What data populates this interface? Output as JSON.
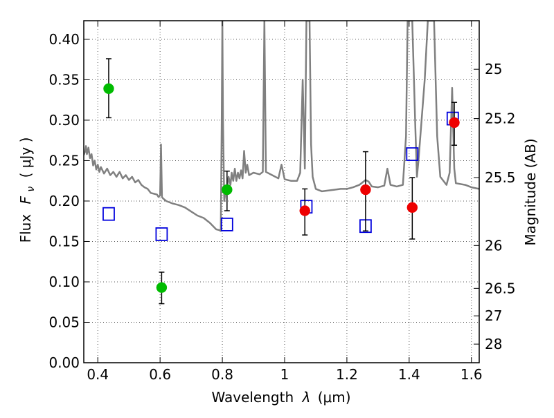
{
  "chart_data": {
    "type": "scatter",
    "title": "",
    "xlabel": "Wavelength",
    "xlabel_symbol": "λ",
    "xlabel_unit": "(μm)",
    "ylabel": "Flux",
    "ylabel_symbol": "F",
    "ylabel_subscript": "ν",
    "ylabel_unit": "( μJy )",
    "y2label": "Magnitude (AB)",
    "xlim": [
      0.355,
      1.625
    ],
    "ylim": [
      0.0,
      0.423
    ],
    "grid": true,
    "xticks": [
      0.4,
      0.6,
      0.8,
      1.0,
      1.2,
      1.4,
      1.6
    ],
    "xtick_labels": [
      "0.4",
      "0.6",
      "0.8",
      "1",
      "1.2",
      "1.4",
      "1.6"
    ],
    "yticks": [
      0.0,
      0.05,
      0.1,
      0.15,
      0.2,
      0.25,
      0.3,
      0.35,
      0.4
    ],
    "ytick_labels": [
      "0.00",
      "0.05",
      "0.10",
      "0.15",
      "0.20",
      "0.25",
      "0.30",
      "0.35",
      "0.40"
    ],
    "y2ticks": [
      {
        "label": "25",
        "flux": 0.363
      },
      {
        "label": "25.2",
        "flux": 0.302
      },
      {
        "label": "25.5",
        "flux": 0.229
      },
      {
        "label": "26",
        "flux": 0.145
      },
      {
        "label": "26.5",
        "flux": 0.092
      },
      {
        "label": "27",
        "flux": 0.058
      },
      {
        "label": "28",
        "flux": 0.023
      }
    ],
    "colors": {
      "spectrum": "#808080",
      "green": "#00bb00",
      "red": "#ee0000",
      "model": "#0000dd",
      "errorbar": "#000000",
      "grid": "#555555"
    },
    "series": [
      {
        "name": "model SED spectrum",
        "type": "line",
        "points": [
          [
            0.355,
            0.257
          ],
          [
            0.36,
            0.262
          ],
          [
            0.362,
            0.268
          ],
          [
            0.365,
            0.258
          ],
          [
            0.37,
            0.266
          ],
          [
            0.375,
            0.253
          ],
          [
            0.38,
            0.258
          ],
          [
            0.385,
            0.244
          ],
          [
            0.39,
            0.25
          ],
          [
            0.395,
            0.239
          ],
          [
            0.4,
            0.245
          ],
          [
            0.405,
            0.236
          ],
          [
            0.41,
            0.242
          ],
          [
            0.42,
            0.234
          ],
          [
            0.43,
            0.24
          ],
          [
            0.44,
            0.232
          ],
          [
            0.45,
            0.236
          ],
          [
            0.46,
            0.23
          ],
          [
            0.47,
            0.236
          ],
          [
            0.48,
            0.228
          ],
          [
            0.49,
            0.232
          ],
          [
            0.5,
            0.226
          ],
          [
            0.51,
            0.23
          ],
          [
            0.52,
            0.223
          ],
          [
            0.53,
            0.226
          ],
          [
            0.54,
            0.22
          ],
          [
            0.55,
            0.217
          ],
          [
            0.56,
            0.215
          ],
          [
            0.57,
            0.21
          ],
          [
            0.58,
            0.209
          ],
          [
            0.59,
            0.208
          ],
          [
            0.595,
            0.205
          ],
          [
            0.6,
            0.207
          ],
          [
            0.603,
            0.27
          ],
          [
            0.606,
            0.205
          ],
          [
            0.61,
            0.203
          ],
          [
            0.62,
            0.2
          ],
          [
            0.64,
            0.197
          ],
          [
            0.66,
            0.195
          ],
          [
            0.68,
            0.192
          ],
          [
            0.7,
            0.187
          ],
          [
            0.72,
            0.182
          ],
          [
            0.74,
            0.179
          ],
          [
            0.76,
            0.173
          ],
          [
            0.78,
            0.165
          ],
          [
            0.79,
            0.164
          ],
          [
            0.795,
            0.163
          ],
          [
            0.798,
            0.3
          ],
          [
            0.8,
            0.423
          ],
          [
            0.802,
            0.3
          ],
          [
            0.806,
            0.2
          ],
          [
            0.81,
            0.21
          ],
          [
            0.815,
            0.214
          ],
          [
            0.82,
            0.23
          ],
          [
            0.826,
            0.22
          ],
          [
            0.83,
            0.235
          ],
          [
            0.835,
            0.225
          ],
          [
            0.84,
            0.24
          ],
          [
            0.845,
            0.225
          ],
          [
            0.85,
            0.235
          ],
          [
            0.855,
            0.228
          ],
          [
            0.86,
            0.238
          ],
          [
            0.865,
            0.228
          ],
          [
            0.87,
            0.262
          ],
          [
            0.875,
            0.235
          ],
          [
            0.88,
            0.245
          ],
          [
            0.886,
            0.232
          ],
          [
            0.9,
            0.235
          ],
          [
            0.92,
            0.233
          ],
          [
            0.93,
            0.236
          ],
          [
            0.935,
            0.423
          ],
          [
            0.94,
            0.236
          ],
          [
            0.96,
            0.232
          ],
          [
            0.98,
            0.228
          ],
          [
            0.99,
            0.245
          ],
          [
            1.0,
            0.227
          ],
          [
            1.02,
            0.225
          ],
          [
            1.04,
            0.225
          ],
          [
            1.05,
            0.235
          ],
          [
            1.058,
            0.35
          ],
          [
            1.065,
            0.24
          ],
          [
            1.07,
            0.423
          ],
          [
            1.08,
            0.423
          ],
          [
            1.085,
            0.27
          ],
          [
            1.09,
            0.23
          ],
          [
            1.1,
            0.215
          ],
          [
            1.12,
            0.212
          ],
          [
            1.14,
            0.213
          ],
          [
            1.16,
            0.214
          ],
          [
            1.18,
            0.215
          ],
          [
            1.2,
            0.215
          ],
          [
            1.22,
            0.217
          ],
          [
            1.24,
            0.22
          ],
          [
            1.26,
            0.226
          ],
          [
            1.27,
            0.224
          ],
          [
            1.28,
            0.218
          ],
          [
            1.3,
            0.217
          ],
          [
            1.32,
            0.219
          ],
          [
            1.33,
            0.24
          ],
          [
            1.34,
            0.22
          ],
          [
            1.36,
            0.218
          ],
          [
            1.38,
            0.22
          ],
          [
            1.39,
            0.28
          ],
          [
            1.395,
            0.423
          ],
          [
            1.41,
            0.423
          ],
          [
            1.42,
            0.29
          ],
          [
            1.425,
            0.23
          ],
          [
            1.43,
            0.25
          ],
          [
            1.44,
            0.3
          ],
          [
            1.45,
            0.35
          ],
          [
            1.46,
            0.423
          ],
          [
            1.48,
            0.423
          ],
          [
            1.49,
            0.28
          ],
          [
            1.5,
            0.23
          ],
          [
            1.52,
            0.22
          ],
          [
            1.53,
            0.235
          ],
          [
            1.538,
            0.34
          ],
          [
            1.545,
            0.24
          ],
          [
            1.55,
            0.222
          ],
          [
            1.58,
            0.22
          ],
          [
            1.6,
            0.217
          ],
          [
            1.625,
            0.215
          ]
        ]
      },
      {
        "name": "green detections",
        "type": "scatter",
        "points": [
          {
            "x": 0.435,
            "y": 0.339,
            "lo": 0.303,
            "hi": 0.376
          },
          {
            "x": 0.605,
            "y": 0.093,
            "lo": 0.073,
            "hi": 0.112
          },
          {
            "x": 0.815,
            "y": 0.214,
            "lo": 0.188,
            "hi": 0.237
          }
        ]
      },
      {
        "name": "red detections",
        "type": "scatter",
        "points": [
          {
            "x": 1.065,
            "y": 0.188,
            "lo": 0.158,
            "hi": 0.215
          },
          {
            "x": 1.26,
            "y": 0.214,
            "lo": 0.163,
            "hi": 0.261
          },
          {
            "x": 1.41,
            "y": 0.192,
            "lo": 0.153,
            "hi": 0.229
          },
          {
            "x": 1.545,
            "y": 0.297,
            "lo": 0.269,
            "hi": 0.322
          }
        ]
      },
      {
        "name": "model photometry",
        "type": "scatter",
        "points": [
          {
            "x": 0.435,
            "y": 0.184
          },
          {
            "x": 0.605,
            "y": 0.159
          },
          {
            "x": 0.815,
            "y": 0.171
          },
          {
            "x": 1.07,
            "y": 0.193
          },
          {
            "x": 1.26,
            "y": 0.169
          },
          {
            "x": 1.41,
            "y": 0.258
          },
          {
            "x": 1.54,
            "y": 0.302
          }
        ]
      }
    ]
  }
}
